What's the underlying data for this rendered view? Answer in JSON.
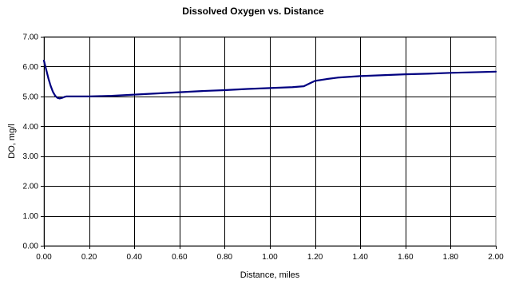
{
  "chart_data": {
    "type": "line",
    "title": "Dissolved Oxygen vs. Distance",
    "xlabel": "Distance, miles",
    "ylabel": "DO, mg/l",
    "xlim": [
      0,
      2
    ],
    "ylim": [
      0,
      7
    ],
    "xticks": [
      "0.00",
      "0.20",
      "0.40",
      "0.60",
      "0.80",
      "1.00",
      "1.20",
      "1.40",
      "1.60",
      "1.80",
      "2.00"
    ],
    "yticks": [
      "0.00",
      "1.00",
      "2.00",
      "3.00",
      "4.00",
      "5.00",
      "6.00",
      "7.00"
    ],
    "grid": true,
    "legend": "none",
    "colors": {
      "series": "#000080",
      "grid": "#000000"
    },
    "series": [
      {
        "x": [
          0.0,
          0.01,
          0.02,
          0.03,
          0.04,
          0.05,
          0.06,
          0.07,
          0.08,
          0.09,
          0.1,
          0.12,
          0.15,
          0.2,
          0.25,
          0.3,
          0.4,
          0.5,
          0.6,
          0.7,
          0.8,
          0.9,
          1.0,
          1.1,
          1.15,
          1.18,
          1.2,
          1.25,
          1.3,
          1.4,
          1.5,
          1.6,
          1.7,
          1.8,
          1.9,
          2.0
        ],
        "y": [
          6.2,
          5.9,
          5.6,
          5.35,
          5.15,
          5.02,
          4.95,
          4.93,
          4.95,
          4.98,
          5.0,
          5.0,
          5.0,
          5.0,
          5.01,
          5.02,
          5.06,
          5.1,
          5.14,
          5.18,
          5.21,
          5.25,
          5.28,
          5.31,
          5.34,
          5.45,
          5.52,
          5.58,
          5.63,
          5.68,
          5.71,
          5.74,
          5.76,
          5.79,
          5.81,
          5.83
        ]
      }
    ]
  }
}
